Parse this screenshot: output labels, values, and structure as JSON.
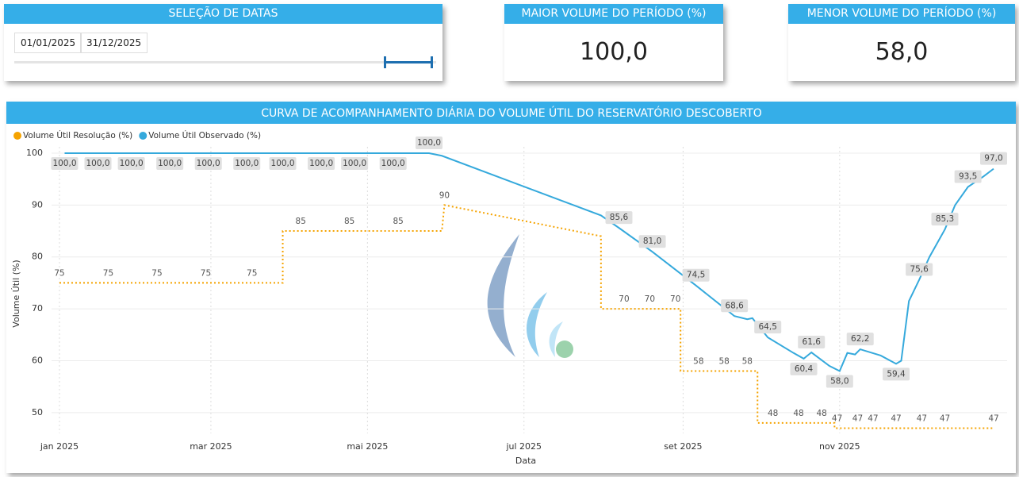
{
  "cards": {
    "date_selection": {
      "title": "SELEÇÃO DE DATAS",
      "start": "01/01/2025",
      "end": "31/12/2025"
    },
    "max_volume": {
      "title": "MAIOR VOLUME DO PERÍODO (%)",
      "value": "100,0"
    },
    "min_volume": {
      "title": "MENOR VOLUME DO PERÍODO (%)",
      "value": "58,0"
    }
  },
  "chart_data": {
    "type": "line",
    "title": "CURVA DE ACOMPANHAMENTO DIÁRIA DO VOLUME ÚTIL DO RESERVATÓRIO DESCOBERTO",
    "x_label": "Data",
    "y_label": "Volume Útil (%)",
    "xlim": [
      "2025-01-01",
      "2025-12-31"
    ],
    "xticks": [
      {
        "value": "2025-01-01",
        "label": "jan 2025"
      },
      {
        "value": "2025-03-01",
        "label": "mar 2025"
      },
      {
        "value": "2025-05-01",
        "label": "mai 2025"
      },
      {
        "value": "2025-07-01",
        "label": "jul 2025"
      },
      {
        "value": "2025-09-01",
        "label": "set 2025"
      },
      {
        "value": "2025-11-01",
        "label": "nov 2025"
      }
    ],
    "ylim": [
      46,
      100
    ],
    "yticks": [
      50,
      60,
      70,
      80,
      90,
      100
    ],
    "grid": true,
    "legend": "top-left",
    "series": [
      {
        "name": "Volume Útil Resolução (%)",
        "color": "#f5a300",
        "dashed": true,
        "x": [
          "2025-01-01",
          "2025-01-20",
          "2025-02-08",
          "2025-02-27",
          "2025-03-17",
          "2025-03-29",
          "2025-03-29",
          "2025-04-05",
          "2025-04-24",
          "2025-05-13",
          "2025-05-30",
          "2025-05-31",
          "2025-07-31",
          "2025-07-31",
          "2025-08-09",
          "2025-08-19",
          "2025-08-29",
          "2025-08-31",
          "2025-08-31",
          "2025-09-07",
          "2025-09-17",
          "2025-09-26",
          "2025-09-30",
          "2025-09-30",
          "2025-10-06",
          "2025-10-16",
          "2025-10-25",
          "2025-10-30",
          "2025-10-30",
          "2025-10-31",
          "2025-11-08",
          "2025-11-14",
          "2025-11-23",
          "2025-12-03",
          "2025-12-12",
          "2025-12-31"
        ],
        "values": [
          75,
          75,
          75,
          75,
          75,
          75,
          85,
          85,
          85,
          85,
          85,
          90,
          84,
          70,
          70,
          70,
          70,
          70,
          58,
          58,
          58,
          58,
          58,
          48,
          48,
          48,
          48,
          48,
          47,
          47,
          47,
          47,
          47,
          47,
          47,
          47
        ],
        "value_labels": [
          "75",
          "75",
          "75",
          "75",
          "75",
          null,
          null,
          "85",
          "85",
          "85",
          null,
          "90",
          null,
          null,
          "70",
          "70",
          "70",
          null,
          null,
          "58",
          "58",
          "58",
          null,
          null,
          "48",
          "48",
          "48",
          null,
          null,
          "47",
          "47",
          "47",
          "47",
          "47",
          "47",
          "47"
        ]
      },
      {
        "name": "Volume Útil Observado (%)",
        "color": "#35a9dc",
        "dashed": false,
        "x": [
          "2025-01-03",
          "2025-01-16",
          "2025-01-29",
          "2025-02-13",
          "2025-02-28",
          "2025-03-15",
          "2025-03-29",
          "2025-04-13",
          "2025-04-26",
          "2025-05-11",
          "2025-05-21",
          "2025-05-25",
          "2025-05-30",
          "2025-07-31",
          "2025-08-07",
          "2025-08-20",
          "2025-09-06",
          "2025-09-21",
          "2025-09-26",
          "2025-09-28",
          "2025-10-04",
          "2025-10-14",
          "2025-10-18",
          "2025-10-21",
          "2025-10-28",
          "2025-11-01",
          "2025-11-04",
          "2025-11-07",
          "2025-11-09",
          "2025-11-17",
          "2025-11-23",
          "2025-11-25",
          "2025-11-28",
          "2025-12-02",
          "2025-12-06",
          "2025-12-12",
          "2025-12-16",
          "2025-12-21",
          "2025-12-27",
          "2025-12-31"
        ],
        "values": [
          100,
          100,
          100,
          100,
          100,
          100,
          100,
          100,
          100,
          100,
          100,
          100,
          99.5,
          88,
          85.6,
          81,
          74.5,
          68.6,
          68,
          68.2,
          64.5,
          61.5,
          60.4,
          61.6,
          59,
          58,
          61.5,
          61.2,
          62.2,
          61,
          59.4,
          60,
          71.5,
          75.6,
          80,
          85.3,
          90,
          93.5,
          95.5,
          97
        ],
        "value_labels": [
          "100,0",
          "100,0",
          "100,0",
          "100,0",
          "100,0",
          "100,0",
          "100,0",
          "100,0",
          "100,0",
          "100,0",
          null,
          "100,0",
          null,
          null,
          "85,6",
          "81,0",
          "74,5",
          "68,6",
          null,
          null,
          "64,5",
          null,
          "60,4",
          "61,6",
          null,
          "58,0",
          null,
          null,
          "62,2",
          null,
          "59,4",
          null,
          null,
          "75,6",
          null,
          "85,3",
          null,
          "93,5",
          null,
          "97,0"
        ]
      }
    ]
  }
}
